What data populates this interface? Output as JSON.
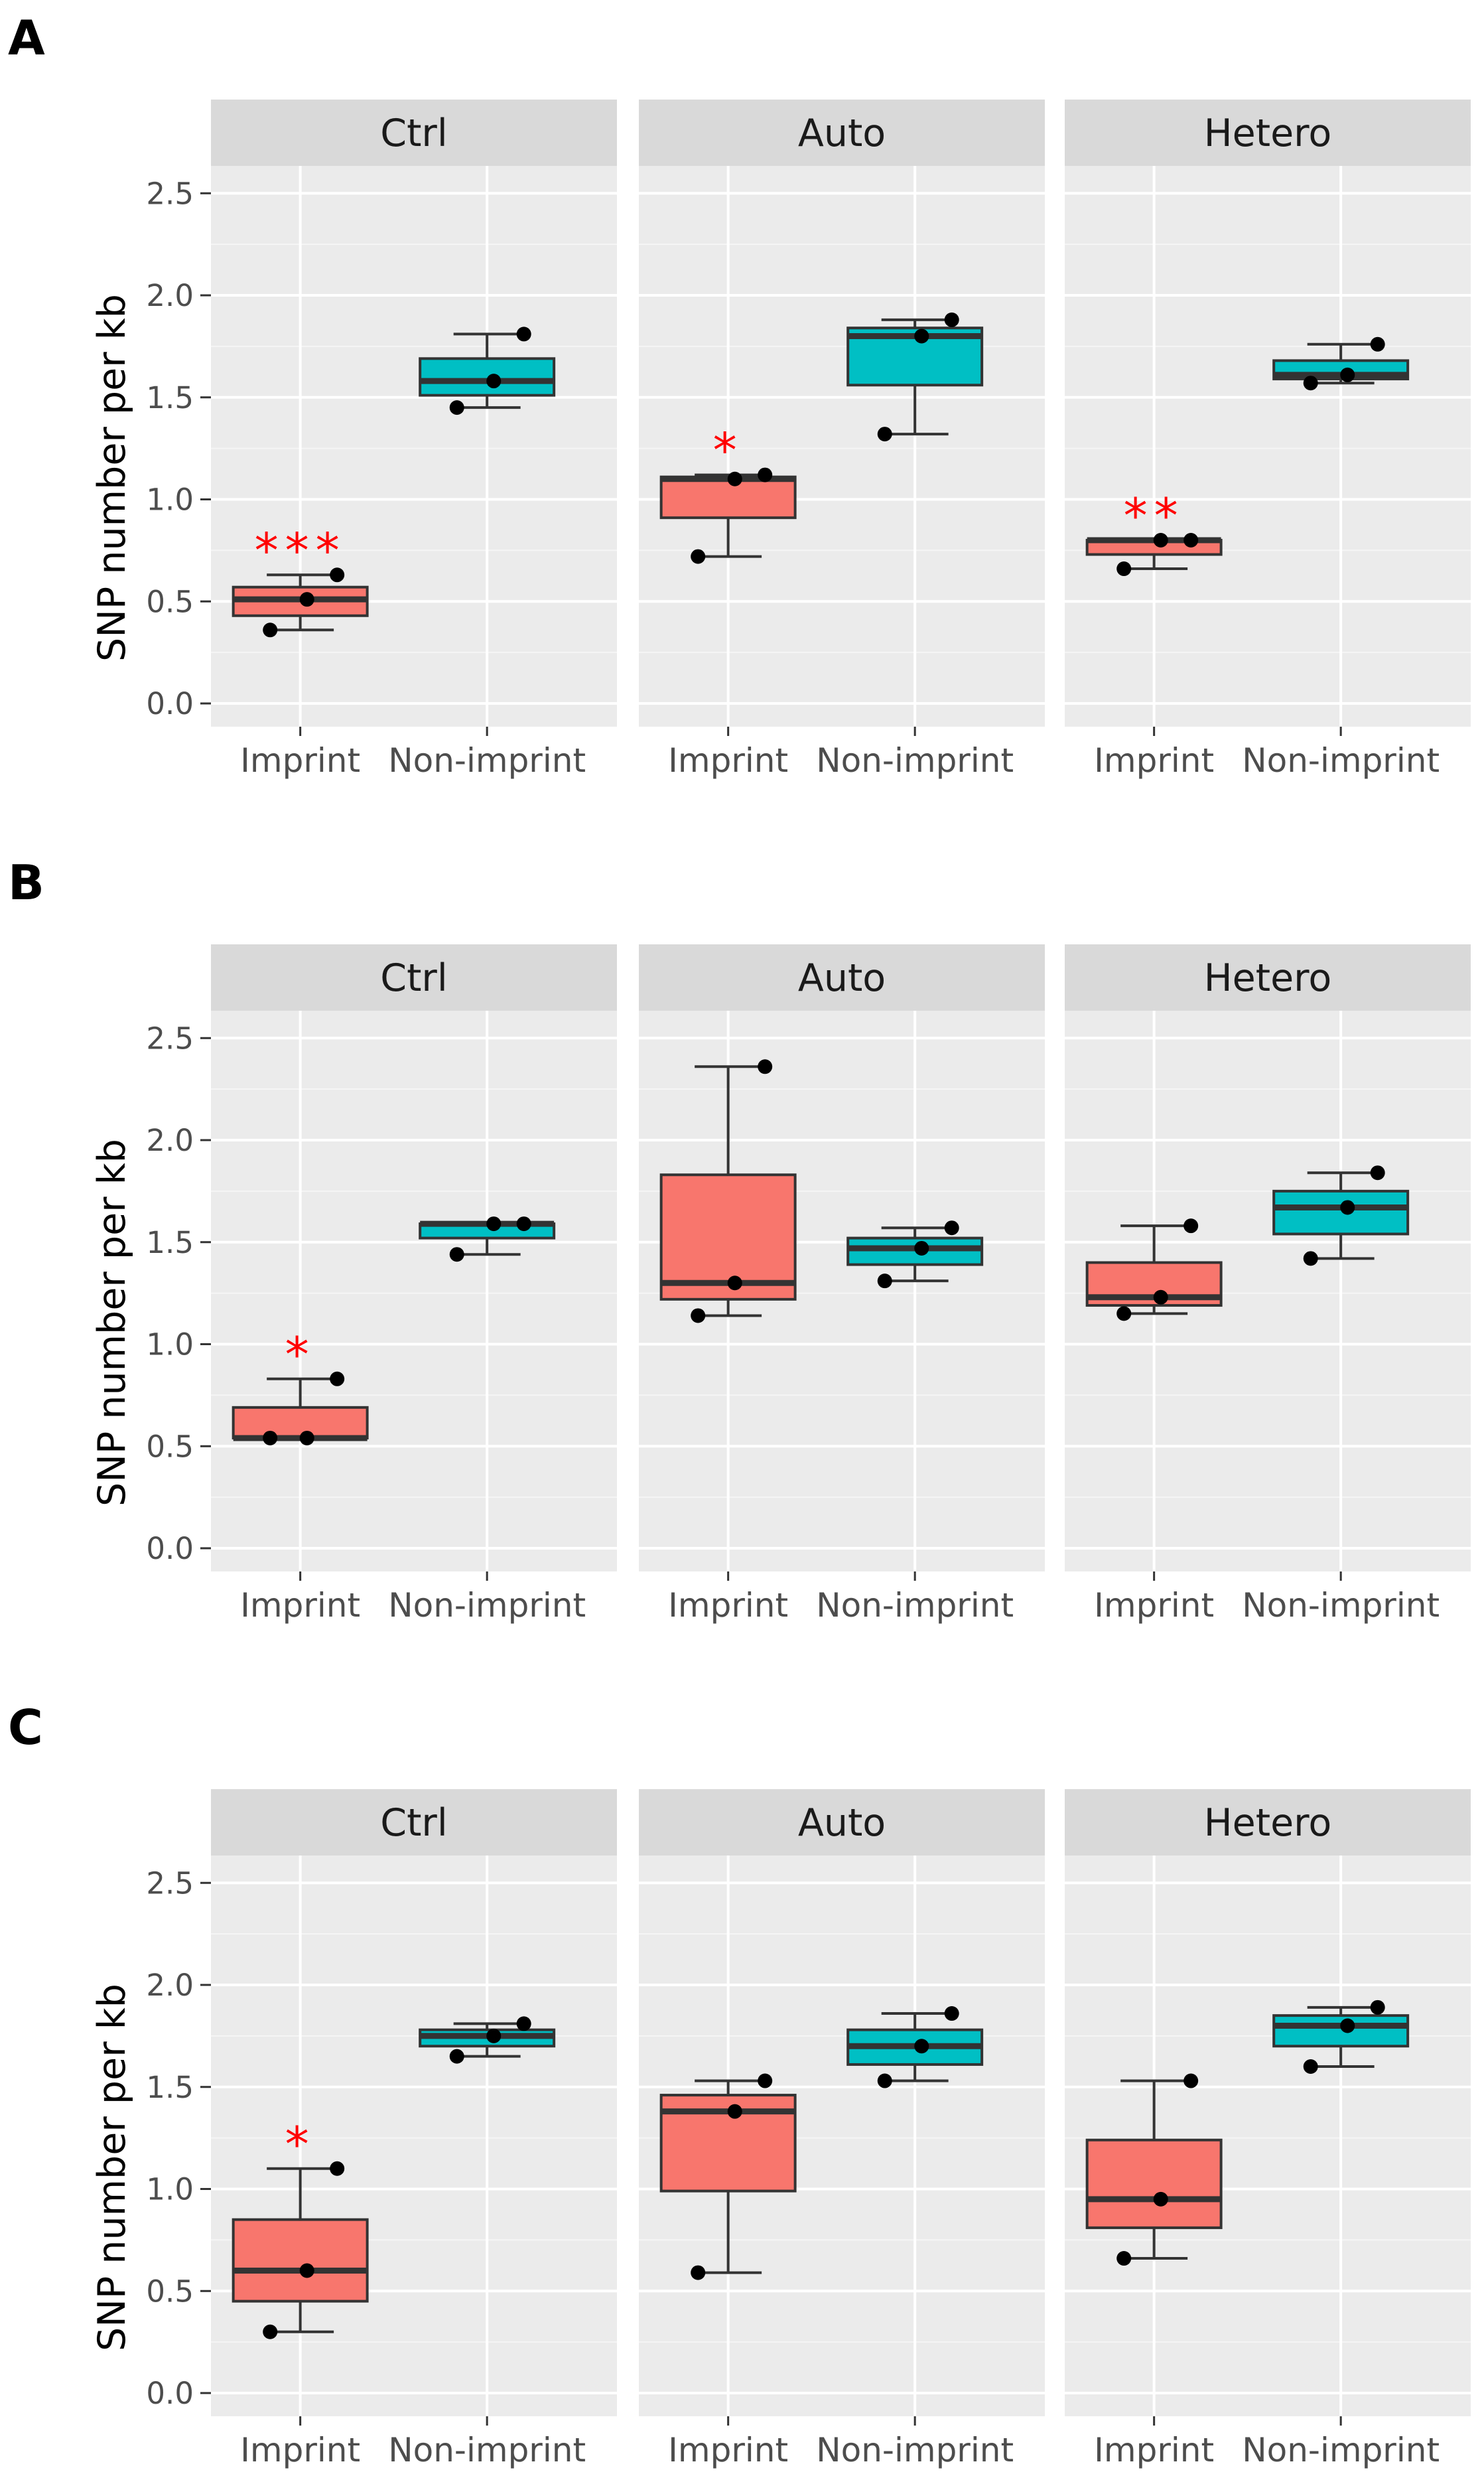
{
  "chart_data": [
    {
      "panel": "A",
      "type": "boxplot",
      "ylabel": "SNP number per kb",
      "ylim": [
        -0.1,
        2.6
      ],
      "yticks": [
        "0.0",
        "0.5",
        "1.0",
        "1.5",
        "2.0",
        "2.5"
      ],
      "categories": [
        "Imprint",
        "Non-imprint"
      ],
      "fill_colors": {
        "Imprint": "#F8766D",
        "Non-imprint": "#00BFC4"
      },
      "facets": [
        {
          "label": "Ctrl",
          "groups": [
            {
              "category": "Imprint",
              "min": 0.36,
              "q1": 0.43,
              "median": 0.51,
              "q3": 0.57,
              "max": 0.63,
              "points": [
                0.36,
                0.51,
                0.63
              ],
              "significance": "***"
            },
            {
              "category": "Non-imprint",
              "min": 1.45,
              "q1": 1.51,
              "median": 1.58,
              "q3": 1.69,
              "max": 1.81,
              "points": [
                1.45,
                1.58,
                1.81
              ],
              "significance": ""
            }
          ]
        },
        {
          "label": "Auto",
          "groups": [
            {
              "category": "Imprint",
              "min": 0.72,
              "q1": 0.91,
              "median": 1.1,
              "q3": 1.11,
              "max": 1.12,
              "points": [
                0.72,
                1.1,
                1.12
              ],
              "significance": "*"
            },
            {
              "category": "Non-imprint",
              "min": 1.32,
              "q1": 1.56,
              "median": 1.8,
              "q3": 1.84,
              "max": 1.88,
              "points": [
                1.32,
                1.8,
                1.88
              ],
              "significance": ""
            }
          ]
        },
        {
          "label": "Hetero",
          "groups": [
            {
              "category": "Imprint",
              "min": 0.66,
              "q1": 0.73,
              "median": 0.8,
              "q3": 0.8,
              "max": 0.8,
              "points": [
                0.66,
                0.8,
                0.8
              ],
              "significance": "**"
            },
            {
              "category": "Non-imprint",
              "min": 1.57,
              "q1": 1.59,
              "median": 1.61,
              "q3": 1.68,
              "max": 1.76,
              "points": [
                1.57,
                1.61,
                1.76
              ],
              "significance": ""
            }
          ]
        }
      ]
    },
    {
      "panel": "B",
      "type": "boxplot",
      "ylabel": "SNP number per kb",
      "ylim": [
        -0.1,
        2.6
      ],
      "yticks": [
        "0.0",
        "0.5",
        "1.0",
        "1.5",
        "2.0",
        "2.5"
      ],
      "categories": [
        "Imprint",
        "Non-imprint"
      ],
      "fill_colors": {
        "Imprint": "#F8766D",
        "Non-imprint": "#00BFC4"
      },
      "facets": [
        {
          "label": "Ctrl",
          "groups": [
            {
              "category": "Imprint",
              "min": 0.54,
              "q1": 0.54,
              "median": 0.54,
              "q3": 0.69,
              "max": 0.83,
              "points": [
                0.54,
                0.54,
                0.83
              ],
              "significance": "*"
            },
            {
              "category": "Non-imprint",
              "min": 1.44,
              "q1": 1.52,
              "median": 1.59,
              "q3": 1.59,
              "max": 1.59,
              "points": [
                1.44,
                1.59,
                1.59
              ],
              "significance": ""
            }
          ]
        },
        {
          "label": "Auto",
          "groups": [
            {
              "category": "Imprint",
              "min": 1.14,
              "q1": 1.22,
              "median": 1.3,
              "q3": 1.83,
              "max": 2.36,
              "points": [
                1.14,
                1.3,
                2.36
              ],
              "significance": ""
            },
            {
              "category": "Non-imprint",
              "min": 1.31,
              "q1": 1.39,
              "median": 1.47,
              "q3": 1.52,
              "max": 1.57,
              "points": [
                1.31,
                1.47,
                1.57
              ],
              "significance": ""
            }
          ]
        },
        {
          "label": "Hetero",
          "groups": [
            {
              "category": "Imprint",
              "min": 1.15,
              "q1": 1.19,
              "median": 1.23,
              "q3": 1.4,
              "max": 1.58,
              "points": [
                1.15,
                1.23,
                1.58
              ],
              "significance": ""
            },
            {
              "category": "Non-imprint",
              "min": 1.42,
              "q1": 1.54,
              "median": 1.67,
              "q3": 1.75,
              "max": 1.84,
              "points": [
                1.42,
                1.67,
                1.84
              ],
              "significance": ""
            }
          ]
        }
      ]
    },
    {
      "panel": "C",
      "type": "boxplot",
      "ylabel": "SNP number per kb",
      "ylim": [
        -0.1,
        2.6
      ],
      "yticks": [
        "0.0",
        "0.5",
        "1.0",
        "1.5",
        "2.0",
        "2.5"
      ],
      "categories": [
        "Imprint",
        "Non-imprint"
      ],
      "fill_colors": {
        "Imprint": "#F8766D",
        "Non-imprint": "#00BFC4"
      },
      "facets": [
        {
          "label": "Ctrl",
          "groups": [
            {
              "category": "Imprint",
              "min": 0.3,
              "q1": 0.45,
              "median": 0.6,
              "q3": 0.85,
              "max": 1.1,
              "points": [
                0.3,
                0.6,
                1.1
              ],
              "significance": "*"
            },
            {
              "category": "Non-imprint",
              "min": 1.65,
              "q1": 1.7,
              "median": 1.75,
              "q3": 1.78,
              "max": 1.81,
              "points": [
                1.65,
                1.75,
                1.81
              ],
              "significance": ""
            }
          ]
        },
        {
          "label": "Auto",
          "groups": [
            {
              "category": "Imprint",
              "min": 0.59,
              "q1": 0.99,
              "median": 1.38,
              "q3": 1.46,
              "max": 1.53,
              "points": [
                0.59,
                1.38,
                1.53
              ],
              "significance": ""
            },
            {
              "category": "Non-imprint",
              "min": 1.53,
              "q1": 1.61,
              "median": 1.7,
              "q3": 1.78,
              "max": 1.86,
              "points": [
                1.53,
                1.7,
                1.86
              ],
              "significance": ""
            }
          ]
        },
        {
          "label": "Hetero",
          "groups": [
            {
              "category": "Imprint",
              "min": 0.66,
              "q1": 0.81,
              "median": 0.95,
              "q3": 1.24,
              "max": 1.53,
              "points": [
                0.66,
                0.95,
                1.53
              ],
              "significance": ""
            },
            {
              "category": "Non-imprint",
              "min": 1.6,
              "q1": 1.7,
              "median": 1.8,
              "q3": 1.85,
              "max": 1.89,
              "points": [
                1.6,
                1.8,
                1.89
              ],
              "significance": ""
            }
          ]
        }
      ]
    }
  ]
}
